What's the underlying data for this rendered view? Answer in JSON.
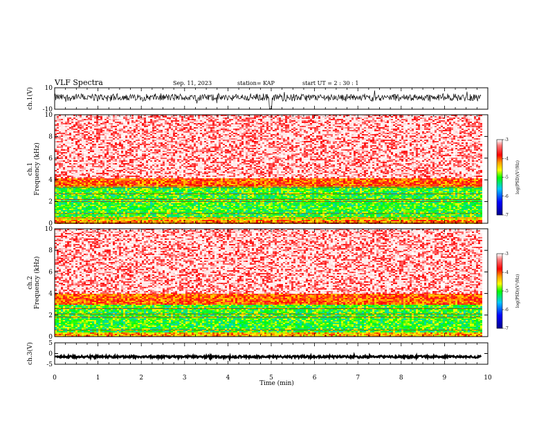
{
  "header": {
    "title": "VLF Spectra",
    "date": "Sep. 11, 2023",
    "station": "station= KAP",
    "start": "start  UT  =  2 : 30 : 1"
  },
  "chart_data": [
    {
      "type": "line",
      "panel": "ch1-waveform",
      "ylabel": "ch.1(V)",
      "ylim": [
        -10,
        10
      ],
      "yticks": [
        "10",
        "-10"
      ],
      "xlim": [
        0,
        10
      ],
      "trace_center": 1,
      "trace_amplitude": 4,
      "data_end_min": 9.85,
      "gap_at_min": 4.98
    },
    {
      "type": "heatmap",
      "panel": "ch1-spectrogram",
      "ylabel": "ch.1\nFrequency (kHz)",
      "ylim": [
        0,
        10
      ],
      "yticks": [
        "0",
        "2",
        "4",
        "6",
        "8",
        "10"
      ],
      "xlim": [
        0,
        10
      ],
      "data_end_min": 9.85,
      "colorbar": {
        "label": "log(PSD)(V²/Hz)",
        "range": [
          -7,
          -3
        ],
        "ticks": [
          "-3",
          "-4",
          "-5",
          "-6",
          "-7"
        ]
      },
      "bands_khz": [
        {
          "from": 0,
          "to": 0.35,
          "level": -4.1
        },
        {
          "from": 0.35,
          "to": 0.7,
          "level": -4.6
        },
        {
          "from": 0.7,
          "to": 3.4,
          "level": -5.0
        },
        {
          "from": 3.4,
          "to": 4.2,
          "level": -4.0
        },
        {
          "from": 4.2,
          "to": 10,
          "level": -3.3
        }
      ],
      "lines_khz": [
        2.0,
        2.2,
        2.7,
        3.3,
        0.5,
        0.9
      ]
    },
    {
      "type": "heatmap",
      "panel": "ch2-spectrogram",
      "ylabel": "ch.2\nFrequency (kHz)",
      "ylim": [
        0,
        10
      ],
      "yticks": [
        "0",
        "2",
        "4",
        "6",
        "8",
        "10"
      ],
      "xlim": [
        0,
        10
      ],
      "data_end_min": 9.85,
      "colorbar": {
        "label": "log(PSD)(V²/Hz)",
        "range": [
          -7,
          -3
        ],
        "ticks": [
          "-3",
          "-4",
          "-5",
          "-6",
          "-7"
        ]
      },
      "bands_khz": [
        {
          "from": 0,
          "to": 0.5,
          "level": -4.3
        },
        {
          "from": 0.5,
          "to": 3.0,
          "level": -5.0
        },
        {
          "from": 3.0,
          "to": 4.0,
          "level": -4.0
        },
        {
          "from": 4.0,
          "to": 10,
          "level": -3.3
        }
      ],
      "lines_khz": [
        1.8,
        2.1,
        2.6,
        0.6
      ]
    },
    {
      "type": "line",
      "panel": "ch3-waveform",
      "ylabel": "ch.3(V)",
      "ylim": [
        -5,
        5
      ],
      "yticks": [
        "5",
        "0",
        "-5"
      ],
      "xlim": [
        0,
        10
      ],
      "trace_center": -1.5,
      "trace_amplitude": 0.6,
      "data_end_min": 9.85
    }
  ],
  "x_axis": {
    "label": "Time (min)",
    "ticks": [
      "0",
      "1",
      "2",
      "3",
      "4",
      "5",
      "6",
      "7",
      "8",
      "9",
      "10"
    ]
  },
  "colors": {
    "high": "#ff0000",
    "mid": "#ffff00",
    "low": "#00ff00",
    "lowest": "#0000ff",
    "trace": "#000000"
  }
}
